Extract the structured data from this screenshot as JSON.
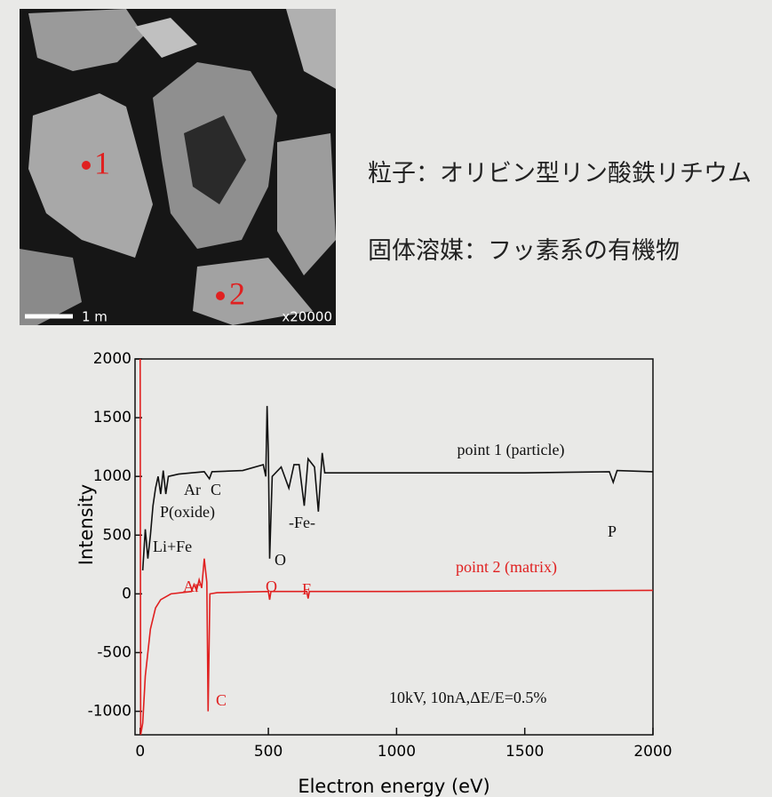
{
  "image": {
    "scale": "1 m",
    "magnification": "x20000",
    "points": [
      "1",
      "2"
    ]
  },
  "text": {
    "particle": "粒子：オリビン型リン酸鉄リチウム",
    "solvent": "固体溶媒：フッ素系の有機物"
  },
  "chart_data": {
    "type": "line",
    "x_label": "Electron energy (eV)",
    "y_label": "Intensity",
    "xlim": [
      -20,
      2000
    ],
    "ylim": [
      -1200,
      2000
    ],
    "xticks": [
      0,
      500,
      1000,
      1500,
      2000
    ],
    "yticks": [
      -1000,
      -500,
      0,
      500,
      1000,
      1500,
      2000
    ],
    "series": [
      {
        "name": "point 1 (particle)",
        "color": "#111111",
        "x": [
          10,
          20,
          30,
          40,
          50,
          60,
          70,
          80,
          90,
          100,
          110,
          150,
          200,
          250,
          270,
          280,
          400,
          480,
          490,
          495,
          500,
          505,
          515,
          550,
          580,
          600,
          620,
          640,
          655,
          680,
          695,
          710,
          720,
          1000,
          1500,
          1830,
          1845,
          1860,
          2000
        ],
        "values": [
          200,
          550,
          300,
          500,
          750,
          900,
          1000,
          850,
          1050,
          850,
          1000,
          1020,
          1030,
          1040,
          980,
          1040,
          1050,
          1100,
          1000,
          1600,
          1200,
          300,
          1000,
          1080,
          900,
          1100,
          1100,
          750,
          1150,
          1080,
          700,
          1200,
          1030,
          1030,
          1030,
          1040,
          950,
          1050,
          1040
        ]
      },
      {
        "name": "point 2 (matrix)",
        "color": "#e02020",
        "x": [
          0,
          2,
          10,
          20,
          40,
          60,
          80,
          120,
          200,
          210,
          220,
          230,
          240,
          250,
          260,
          265,
          272,
          300,
          500,
          505,
          510,
          650,
          655,
          660,
          1000,
          2000
        ],
        "values": [
          2000,
          -1200,
          -1100,
          -700,
          -300,
          -120,
          -50,
          0,
          20,
          80,
          30,
          120,
          50,
          300,
          100,
          -1000,
          0,
          10,
          20,
          -50,
          20,
          20,
          -40,
          20,
          20,
          30
        ]
      }
    ],
    "annotations": [
      {
        "text": "Ar",
        "color": "#111111"
      },
      {
        "text": "C",
        "color": "#111111"
      },
      {
        "text": "P(oxide)",
        "color": "#111111"
      },
      {
        "text": "Li+Fe",
        "color": "#111111"
      },
      {
        "text": "O",
        "color": "#111111"
      },
      {
        "text": "-Fe-",
        "color": "#111111"
      },
      {
        "text": "P",
        "color": "#111111"
      },
      {
        "text": "Ar",
        "color": "#e02020"
      },
      {
        "text": "O",
        "color": "#e02020"
      },
      {
        "text": "F",
        "color": "#e02020"
      },
      {
        "text": "C",
        "color": "#e02020"
      },
      {
        "text": "10kV, 10nA,ΔE/E=0.5%",
        "color": "#111111"
      }
    ]
  }
}
